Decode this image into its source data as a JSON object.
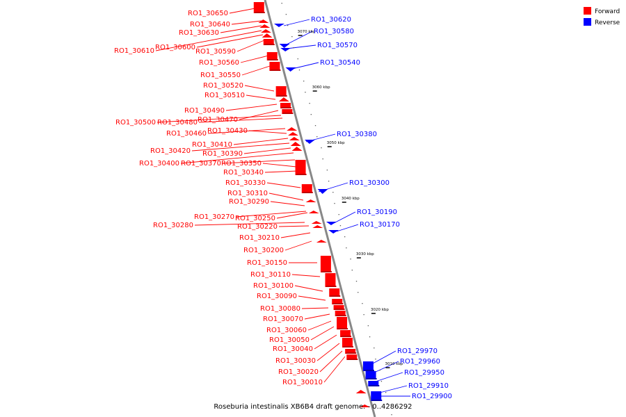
{
  "legend": {
    "forward_label": "Forward",
    "reverse_label": "Reverse",
    "forward_color": "#ff0000",
    "reverse_color": "#0000ff"
  },
  "caption": "Roseburia intestinalis XB6B4 draft genome. - 0..4286292",
  "scale": [
    {
      "label": "3070 kbp",
      "kbp": 3070
    },
    {
      "label": "3060 kbp",
      "kbp": 3060
    },
    {
      "label": "3050 kbp",
      "kbp": 3050
    },
    {
      "label": "3040 kbp",
      "kbp": 3040
    },
    {
      "label": "3030 kbp",
      "kbp": 3030
    },
    {
      "label": "3020 kbp",
      "kbp": 3020
    },
    {
      "label": "3010 kbp",
      "kbp": 3010
    }
  ],
  "forward_genes": [
    "RO1_30650",
    "RO1_30640",
    "RO1_30630",
    "RO1_30610",
    "RO1_30600",
    "RO1_30590",
    "RO1_30560",
    "RO1_30550",
    "RO1_30520",
    "RO1_30510",
    "RO1_30490",
    "RO1_30470",
    "RO1_30500",
    "RO1_30480",
    "RO1_30460",
    "RO1_30430",
    "RO1_30410",
    "RO1_30420",
    "RO1_30390",
    "RO1_30400",
    "RO1_30370",
    "RO1_30350",
    "RO1_30340",
    "RO1_30330",
    "RO1_30310",
    "RO1_30290",
    "RO1_30270",
    "RO1_30250",
    "RO1_30280",
    "RO1_30220",
    "RO1_30210",
    "RO1_30200",
    "RO1_30150",
    "RO1_30110",
    "RO1_30100",
    "RO1_30090",
    "RO1_30080",
    "RO1_30070",
    "RO1_30060",
    "RO1_30050",
    "RO1_30040",
    "RO1_30030",
    "RO1_30020",
    "RO1_30010"
  ],
  "reverse_genes": [
    "RO1_30620",
    "RO1_30580",
    "RO1_30570",
    "RO1_30540",
    "RO1_30380",
    "RO1_30300",
    "RO1_30190",
    "RO1_30170",
    "RO1_29970",
    "RO1_29960",
    "RO1_29950",
    "RO1_29910",
    "RO1_29900"
  ]
}
